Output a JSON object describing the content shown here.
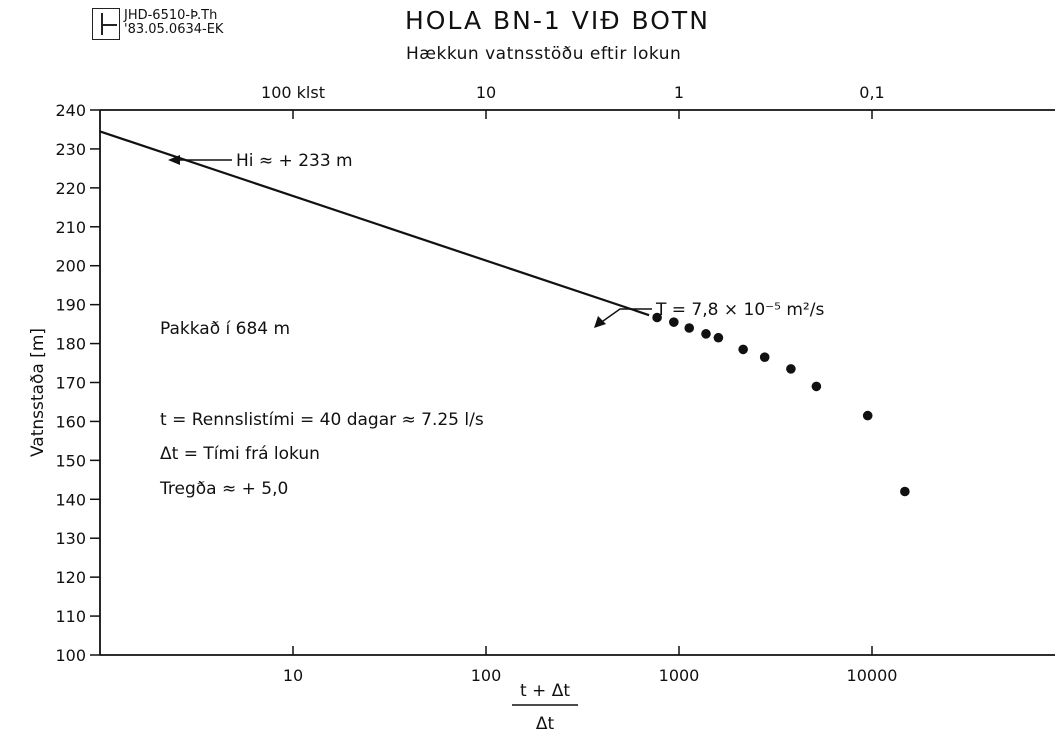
{
  "header": {
    "code_line_1": "JHD-6510-Þ.Th",
    "code_line_2": "'83.05.0634-EK"
  },
  "chart_data": {
    "type": "scatter",
    "title": "HOLA BN-1 VIÐ BOTN",
    "subtitle": "Hækkun vatnsstöðu eftir lokun",
    "ylabel": "Vatnsstaða [m]",
    "xlabel_numerator": "t + Δt",
    "xlabel_denominator": "Δt",
    "x_scale": "log",
    "xlim": [
      1,
      100000
    ],
    "ylim": [
      100,
      240
    ],
    "yticks": [
      100,
      110,
      120,
      130,
      140,
      150,
      160,
      170,
      180,
      190,
      200,
      210,
      220,
      230,
      240
    ],
    "xticks": [
      {
        "value": 10,
        "label": "10"
      },
      {
        "value": 100,
        "label": "100"
      },
      {
        "value": 1000,
        "label": "1000"
      },
      {
        "value": 10000,
        "label": "10000"
      }
    ],
    "top_axis": {
      "label": "",
      "ticks": [
        {
          "value": 10,
          "label": "100 klst"
        },
        {
          "value": 100,
          "label": "10"
        },
        {
          "value": 1000,
          "label": "1"
        },
        {
          "value": 10000,
          "label": "0,1"
        }
      ]
    },
    "fit_line": {
      "x": [
        1,
        700
      ],
      "y": [
        234.5,
        187.3
      ]
    },
    "series": [
      {
        "x": [
          770,
          940,
          1130,
          1380,
          1600,
          2150,
          2780,
          3800,
          5150,
          9500,
          14800
        ],
        "y": [
          186.7,
          185.5,
          184.0,
          182.5,
          181.5,
          178.5,
          176.5,
          173.5,
          169.0,
          161.5,
          142.0
        ]
      }
    ],
    "annotations": [
      {
        "text": "Hi ≈ + 233 m"
      },
      {
        "text": "T = 7,8 × 10⁻⁵ m²/s"
      },
      {
        "text": "Pakkað í 684 m"
      },
      {
        "text": "t = Rennslistími = 40 dagar ≈ 7.25 l/s"
      },
      {
        "text": "Δt = Tími frá lokun"
      },
      {
        "text": "Tregða ≈ + 5,0"
      }
    ]
  }
}
